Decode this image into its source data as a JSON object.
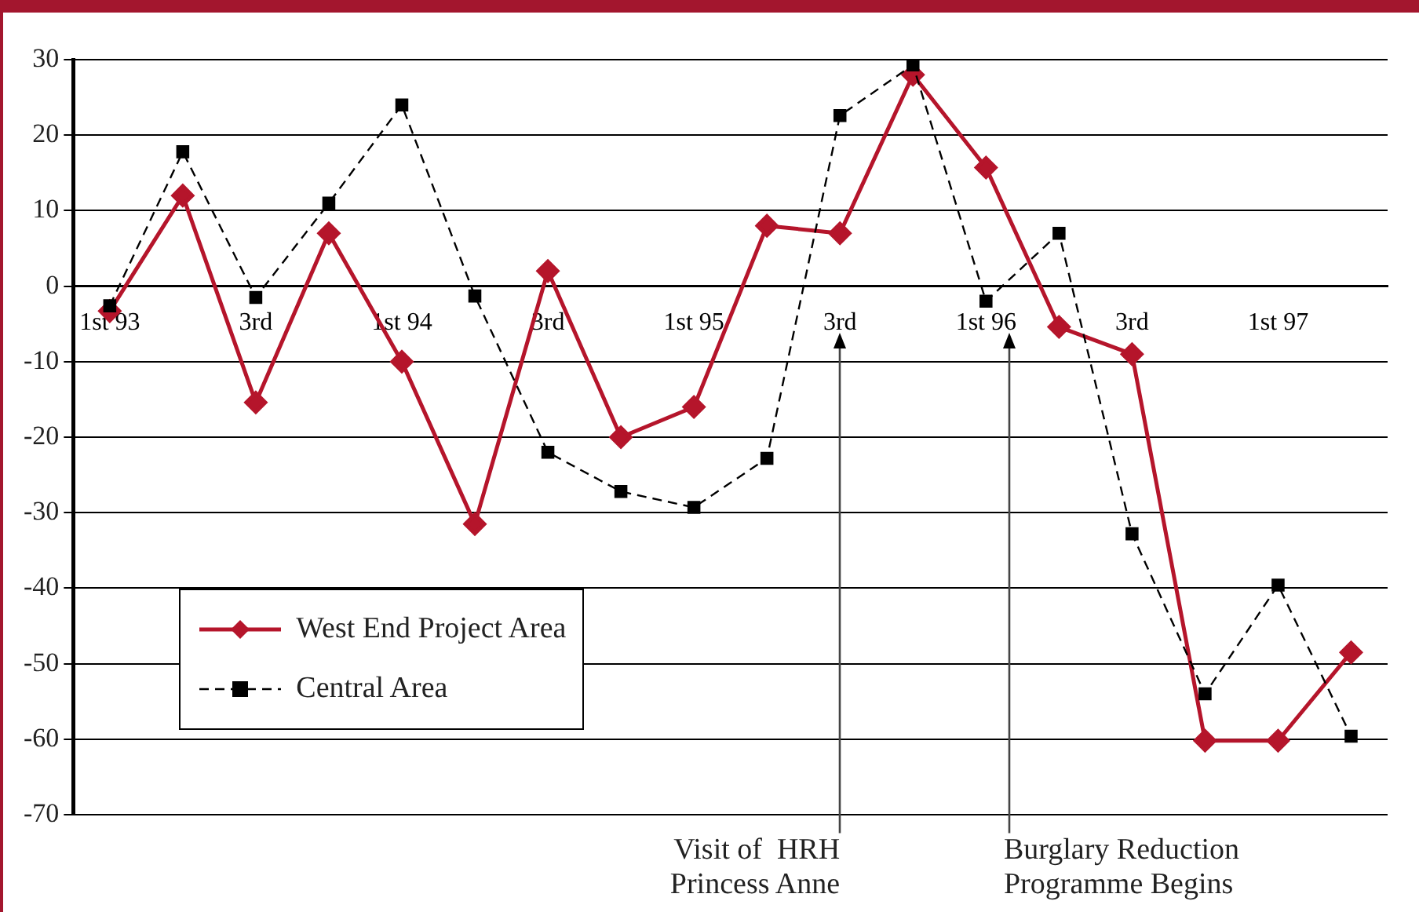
{
  "chart_data": {
    "type": "line",
    "categories": [
      "1st 93",
      null,
      "3rd",
      null,
      "1st 94",
      null,
      "3rd",
      null,
      "1st 95",
      null,
      "3rd",
      null,
      "1st 96",
      null,
      "3rd",
      null,
      "1st 97",
      null
    ],
    "series": [
      {
        "name": "West End Project Area",
        "color": "#b5152b",
        "marker": "diamond",
        "line_style": "solid",
        "values": [
          -3.3,
          12,
          -15.4,
          7,
          -10,
          -31.5,
          2,
          -20,
          -16,
          8,
          7,
          28,
          15.7,
          -5.4,
          -9,
          -60.2,
          -60.2,
          -48.5
        ]
      },
      {
        "name": "Central Area",
        "color": "#000000",
        "marker": "square",
        "line_style": "dashed",
        "values": [
          -2.6,
          17.8,
          -1.5,
          11,
          24,
          -1.3,
          -22,
          -27.2,
          -29.3,
          -22.8,
          22.6,
          29.3,
          -2,
          7,
          -32.8,
          -54,
          -39.6,
          -59.6
        ]
      }
    ],
    "ylim": [
      -70,
      30
    ],
    "yticks": [
      -70,
      -60,
      -50,
      -40,
      -30,
      -20,
      -10,
      0,
      10,
      20,
      30
    ],
    "grid": "y",
    "legend": "bottom left",
    "annotations": [
      "Visit of  HRH\nPrincess Anne",
      "Burglary Reduction\nProgramme Begins"
    ]
  }
}
